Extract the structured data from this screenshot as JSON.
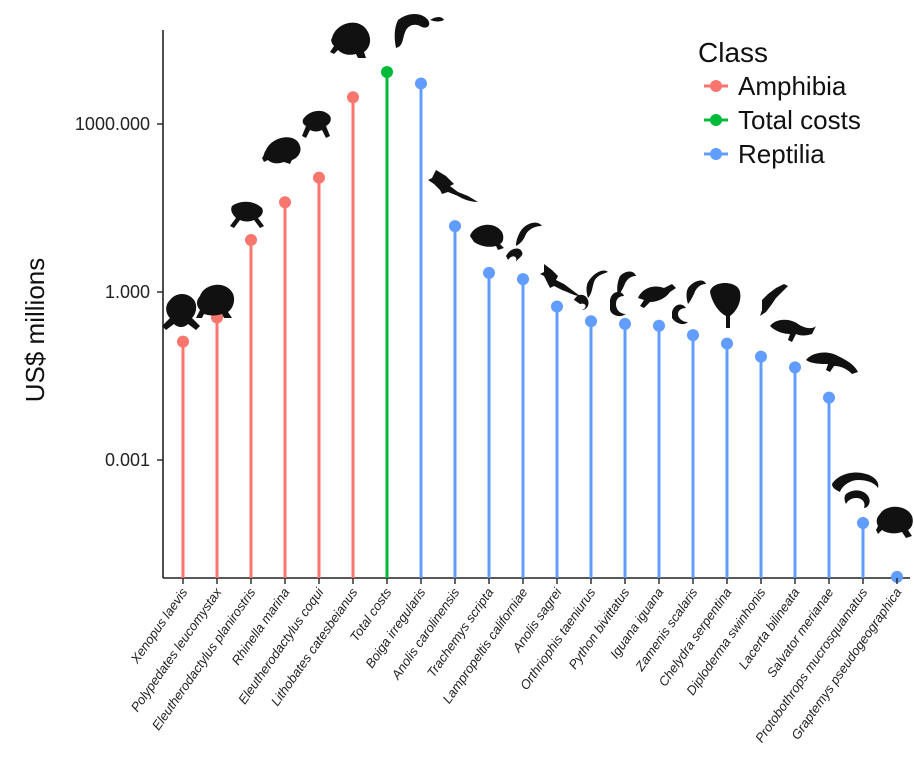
{
  "chart_data": {
    "type": "lollipop",
    "ylabel": "US$ millions",
    "y_scale": "log10",
    "ylim": [
      1.7e-06,
      50000
    ],
    "yticks": [
      0.001,
      1,
      1000
    ],
    "ytick_labels": [
      "0.001",
      "1.000",
      "1000.000"
    ],
    "legend": {
      "title": "Class",
      "placement": "top-right",
      "entries": [
        {
          "label": "Amphibia",
          "color": "#F8766D"
        },
        {
          "label": "Total costs",
          "color": "#00BA38"
        },
        {
          "label": "Reptilia",
          "color": "#619CFF"
        }
      ]
    },
    "grid": false,
    "points": [
      {
        "species": "Xenopus laevis",
        "class": "Amphibia",
        "value": 0.13
      },
      {
        "species": "Polypedates leucomystax",
        "class": "Amphibia",
        "value": 0.35
      },
      {
        "species": "Eleutherodactylus planirostris",
        "class": "Amphibia",
        "value": 8.5
      },
      {
        "species": "Rhinella marina",
        "class": "Amphibia",
        "value": 40
      },
      {
        "species": "Eleutherodactylus coqui",
        "class": "Amphibia",
        "value": 110
      },
      {
        "species": "Lithobates catesbeianus",
        "class": "Amphibia",
        "value": 3000
      },
      {
        "species": "Total costs",
        "class": "Total costs",
        "value": 8500
      },
      {
        "species": "Boiga irregularis",
        "class": "Reptilia",
        "value": 5300
      },
      {
        "species": "Anolis carolinensis",
        "class": "Reptilia",
        "value": 15
      },
      {
        "species": "Trachemys scripta",
        "class": "Reptilia",
        "value": 2.2
      },
      {
        "species": "Lampropeltis californiae",
        "class": "Reptilia",
        "value": 1.7
      },
      {
        "species": "Anolis sagrei",
        "class": "Reptilia",
        "value": 0.55
      },
      {
        "species": "Orthriophis taeniurus",
        "class": "Reptilia",
        "value": 0.3
      },
      {
        "species": "Python bivittatus",
        "class": "Reptilia",
        "value": 0.27
      },
      {
        "species": "Iguana iguana",
        "class": "Reptilia",
        "value": 0.25
      },
      {
        "species": "Zamenis scalaris",
        "class": "Reptilia",
        "value": 0.17
      },
      {
        "species": "Chelydra serpentina",
        "class": "Reptilia",
        "value": 0.12
      },
      {
        "species": "Diploderma swinhonis",
        "class": "Reptilia",
        "value": 0.07
      },
      {
        "species": "Lacerta bilineata",
        "class": "Reptilia",
        "value": 0.045
      },
      {
        "species": "Salvator merianae",
        "class": "Reptilia",
        "value": 0.013
      },
      {
        "species": "Protobothrops mucrosquamatus",
        "class": "Reptilia",
        "value": 7.5e-05
      },
      {
        "species": "Graptemys pseudogeographica",
        "class": "Reptilia",
        "value": 8.2e-06
      }
    ]
  }
}
